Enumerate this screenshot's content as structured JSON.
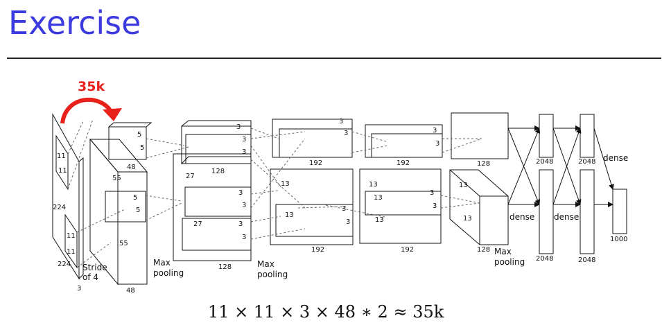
{
  "slide": {
    "title": "Exercise"
  },
  "diagram": {
    "annotation": "35k",
    "annotation_color": "#e8221b",
    "title_color": "#3b3be0",
    "labels": {
      "in_224_side": "224",
      "in_224_bottom": "224",
      "in_3": "3",
      "k11a": "11",
      "k11b": "11",
      "k11c": "11",
      "k11d": "11",
      "stride": "Stride\nof 4",
      "c1_55a": "55",
      "c1_55b": "55",
      "c1_48": "48",
      "c1_5a": "5",
      "c1_5b": "5",
      "c1_5c": "5",
      "c1_5d": "5",
      "c1_48top": "48",
      "c2_27a": "27",
      "c2_27b": "27",
      "c2_128top": "128",
      "c2_128bot": "128",
      "c2_3a": "3",
      "c2_3b": "3",
      "c2_3c": "3",
      "c2_3d": "3",
      "c2_3e": "3",
      "c2_3f": "3",
      "maxpool1": "Max\npooling",
      "maxpool2": "Max\npooling",
      "c3_192top": "192",
      "c3_192bot": "192",
      "c3_13a": "13",
      "c3_13b": "13",
      "c3_13c": "13",
      "c3_3a": "3",
      "c3_3b": "3",
      "c3_3c": "3",
      "c3_3d": "3",
      "c4_192top": "192",
      "c4_192bot": "192",
      "c4_13a": "13",
      "c4_13b": "13",
      "c4_3a": "3",
      "c4_3b": "3",
      "c4_3c": "3",
      "c4_3d": "3",
      "c5_128top": "128",
      "c5_128bot": "128",
      "c5_13a": "13",
      "c5_13b": "13",
      "maxpool3": "Max\npooling",
      "fc_2048a": "2048",
      "fc_2048b": "2048",
      "fc_2048c": "2048",
      "fc_2048d": "2048",
      "dense1": "dense",
      "dense2": "dense",
      "dense3": "dense",
      "out_1000": "1000"
    }
  },
  "formula": "11 × 11 × 3 × 48 ∗ 2 ≈ 35k"
}
